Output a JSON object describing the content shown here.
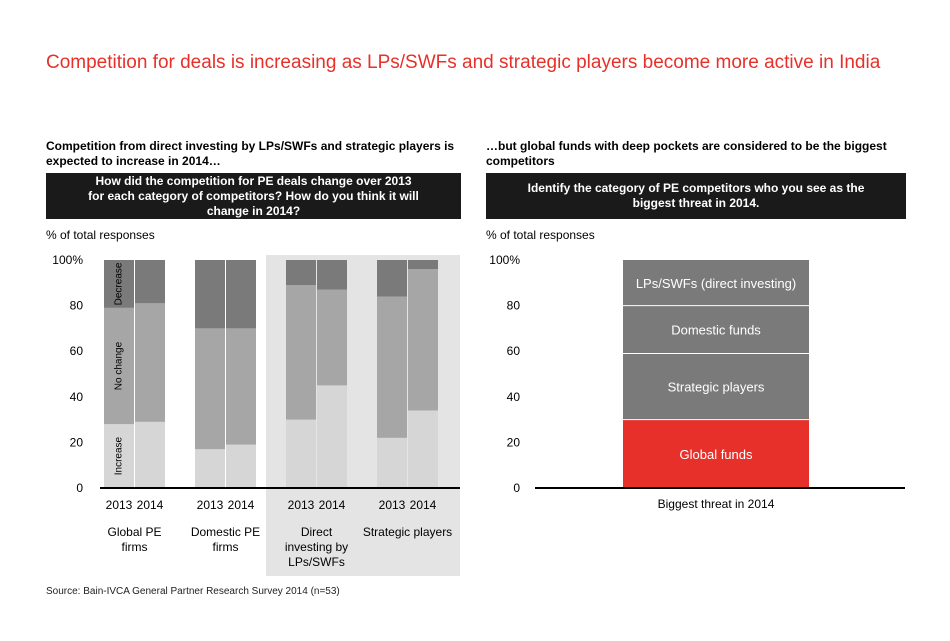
{
  "title": "Competition for deals is increasing as LPs/SWFs and strategic players become more active in India",
  "left": {
    "subtitle": "Competition from direct investing by LPs/SWFs and strategic players is expected to increase in 2014…",
    "question": "How did the competition for PE deals change over 2013 for each category of competitors? How do you think it will change in 2014?",
    "unit": "% of total responses"
  },
  "right": {
    "subtitle": "…but global funds with deep pockets are considered to be the biggest competitors",
    "question": "Identify the category of PE competitors who you see as the biggest threat in 2014.",
    "unit": "% of total responses"
  },
  "source": "Source: Bain-IVCA General Partner Research Survey 2014 (n=53)",
  "colors": {
    "increase": "#d6d6d6",
    "no_change": "#a6a6a6",
    "decrease": "#7a7a7a",
    "accent": "#e8302a",
    "highlight_bg": "#e4e4e4"
  },
  "chart_data": [
    {
      "type": "bar",
      "stacked": true,
      "ylim": [
        0,
        100
      ],
      "y_ticks": [
        "0",
        "20",
        "40",
        "60",
        "80",
        "100%"
      ],
      "groups": [
        "Global PE firms",
        "Domestic PE firms",
        "Direct investing by LPs/SWFs",
        "Strategic players"
      ],
      "x": [
        "2013",
        "2014"
      ],
      "series": [
        {
          "name": "Increase",
          "values": [
            [
              28,
              29
            ],
            [
              17,
              19
            ],
            [
              30,
              45
            ],
            [
              22,
              34
            ]
          ]
        },
        {
          "name": "No change",
          "values": [
            [
              51,
              52
            ],
            [
              53,
              51
            ],
            [
              59,
              42
            ],
            [
              62,
              62
            ]
          ]
        },
        {
          "name": "Decrease",
          "values": [
            [
              21,
              19
            ],
            [
              30,
              30
            ],
            [
              11,
              13
            ],
            [
              16,
              4
            ]
          ]
        }
      ],
      "highlighted_groups": [
        "Direct investing by LPs/SWFs",
        "Strategic players"
      ]
    },
    {
      "type": "bar",
      "stacked": true,
      "ylim": [
        0,
        100
      ],
      "y_ticks": [
        "0",
        "20",
        "40",
        "60",
        "80",
        "100%"
      ],
      "categories": [
        "Biggest threat in 2014"
      ],
      "series": [
        {
          "name": "Global funds",
          "values": [
            30
          ]
        },
        {
          "name": "Strategic players",
          "values": [
            29
          ]
        },
        {
          "name": "Domestic funds",
          "values": [
            21
          ]
        },
        {
          "name": "LPs/SWFs (direct investing)",
          "values": [
            20
          ]
        }
      ]
    }
  ]
}
